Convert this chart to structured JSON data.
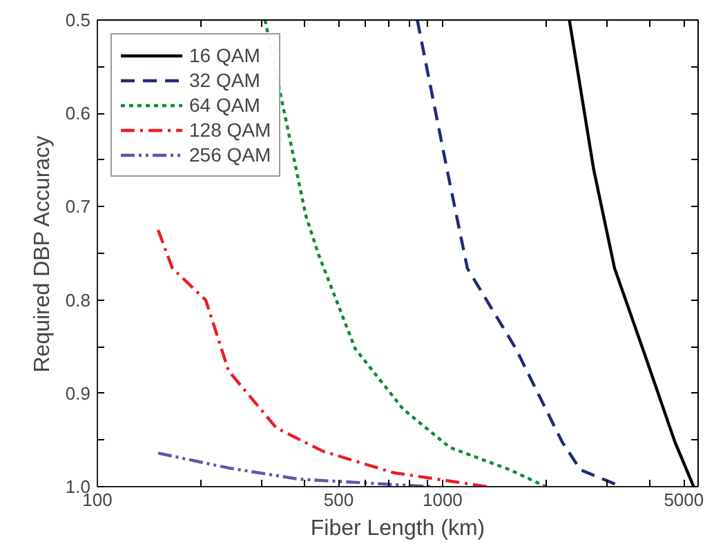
{
  "chart_data": {
    "type": "line",
    "xlabel": "Fiber Length (km)",
    "ylabel": "Required DBP Accuracy",
    "log": "x",
    "xlim": [
      100,
      5500
    ],
    "ylim": [
      1.0,
      0.5
    ],
    "xticks": [
      100,
      {
        "value": 200,
        "label": null
      },
      {
        "value": 300,
        "label": null
      },
      {
        "value": 400,
        "label": null
      },
      500,
      {
        "value": 600,
        "label": null
      },
      {
        "value": 700,
        "label": null
      },
      {
        "value": 800,
        "label": null
      },
      {
        "value": 900,
        "label": null
      },
      1000,
      {
        "value": 2000,
        "label": null
      },
      {
        "value": 3000,
        "label": null
      },
      {
        "value": 4000,
        "label": null
      },
      5000
    ],
    "yticks": [
      0.5,
      {
        "value": 0.55,
        "label": null
      },
      0.6,
      {
        "value": 0.65,
        "label": null
      },
      0.7,
      {
        "value": 0.75,
        "label": null
      },
      0.8,
      {
        "value": 0.85,
        "label": null
      },
      0.9,
      {
        "value": 0.95,
        "label": null
      },
      {
        "value": 1.0,
        "label": "1.0"
      }
    ],
    "grid": false,
    "legend": "top left",
    "marker": "none",
    "series": [
      {
        "name": "16 QAM",
        "color": "#000000",
        "line_style": "solid",
        "x": [
          2330,
          2740,
          3150,
          3800,
          4710,
          5340
        ],
        "values": [
          0.5,
          0.66,
          0.766,
          0.852,
          0.952,
          1.0
        ]
      },
      {
        "name": "32 QAM",
        "color": "#1f2a7a",
        "line_style": "dashed",
        "x": [
          845,
          1030,
          1180,
          1630,
          2220,
          2510,
          3300
        ],
        "values": [
          0.5,
          0.66,
          0.766,
          0.852,
          0.952,
          0.982,
          1.0
        ]
      },
      {
        "name": "64 QAM",
        "color": "#0b8a3a",
        "line_style": "dotted",
        "x": [
          306,
          402,
          437,
          558,
          769,
          1050,
          1570,
          1990
        ],
        "values": [
          0.5,
          0.71,
          0.751,
          0.852,
          0.917,
          0.958,
          0.982,
          1.0
        ]
      },
      {
        "name": "128 QAM",
        "color": "#ed1c24",
        "line_style": "dashdot",
        "x": [
          150,
          165,
          206,
          240,
          330,
          450,
          720,
          1350
        ],
        "values": [
          0.725,
          0.766,
          0.8,
          0.876,
          0.937,
          0.962,
          0.985,
          1.0
        ]
      },
      {
        "name": "256 QAM",
        "color": "#6a4fa8",
        "line_style": "dashdotdot",
        "x": [
          150,
          240,
          384,
          927
        ],
        "values": [
          0.964,
          0.98,
          0.992,
          1.0
        ]
      }
    ]
  }
}
